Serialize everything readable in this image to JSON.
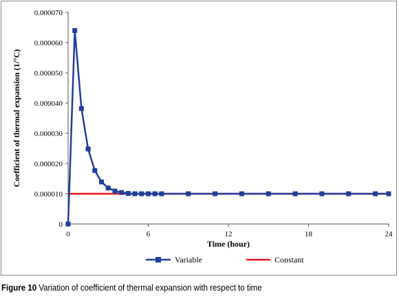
{
  "chart_data": {
    "type": "line",
    "title": "",
    "xlabel": "Time (hour)",
    "ylabel": "Coefficient of thermal expansion (1/°C)",
    "xlim": [
      0,
      24
    ],
    "ylim": [
      0,
      7e-05
    ],
    "x_ticks": [
      0,
      6,
      12,
      18,
      24
    ],
    "x_tick_labels": [
      "0",
      "6",
      "12",
      "18",
      "24"
    ],
    "y_ticks": [
      0,
      1e-05,
      2e-05,
      3e-05,
      4e-05,
      5e-05,
      6e-05,
      7e-05
    ],
    "y_tick_labels": [
      "0",
      "0.000010",
      "0.000020",
      "0.000030",
      "0.000040",
      "0.000050",
      "0.000060",
      "0.000070"
    ],
    "grid": false,
    "legend_position": "bottom",
    "series": [
      {
        "name": "Variable",
        "color": "#1f3f9a",
        "marker": "square",
        "x": [
          0,
          0.5,
          1,
          1.5,
          2,
          2.5,
          3,
          3.5,
          4,
          4.5,
          5,
          5.5,
          6,
          6.5,
          7,
          9,
          11,
          13,
          15,
          17,
          19,
          21,
          23,
          24
        ],
        "y": [
          0,
          6.4e-05,
          3.82e-05,
          2.48e-05,
          1.77e-05,
          1.39e-05,
          1.19e-05,
          1.09e-05,
          1.04e-05,
          1.01e-05,
          1e-05,
          1e-05,
          1e-05,
          1e-05,
          1e-05,
          1e-05,
          1e-05,
          1e-05,
          1e-05,
          1e-05,
          1e-05,
          1e-05,
          1e-05,
          1e-05
        ]
      },
      {
        "name": "Constant",
        "color": "#e8141b",
        "marker": "none",
        "x": [
          0,
          24
        ],
        "y": [
          1e-05,
          1e-05
        ]
      }
    ]
  },
  "caption": {
    "label": "Figure 10",
    "text": " Variation of coefficient of thermal expansion with respect to time"
  }
}
